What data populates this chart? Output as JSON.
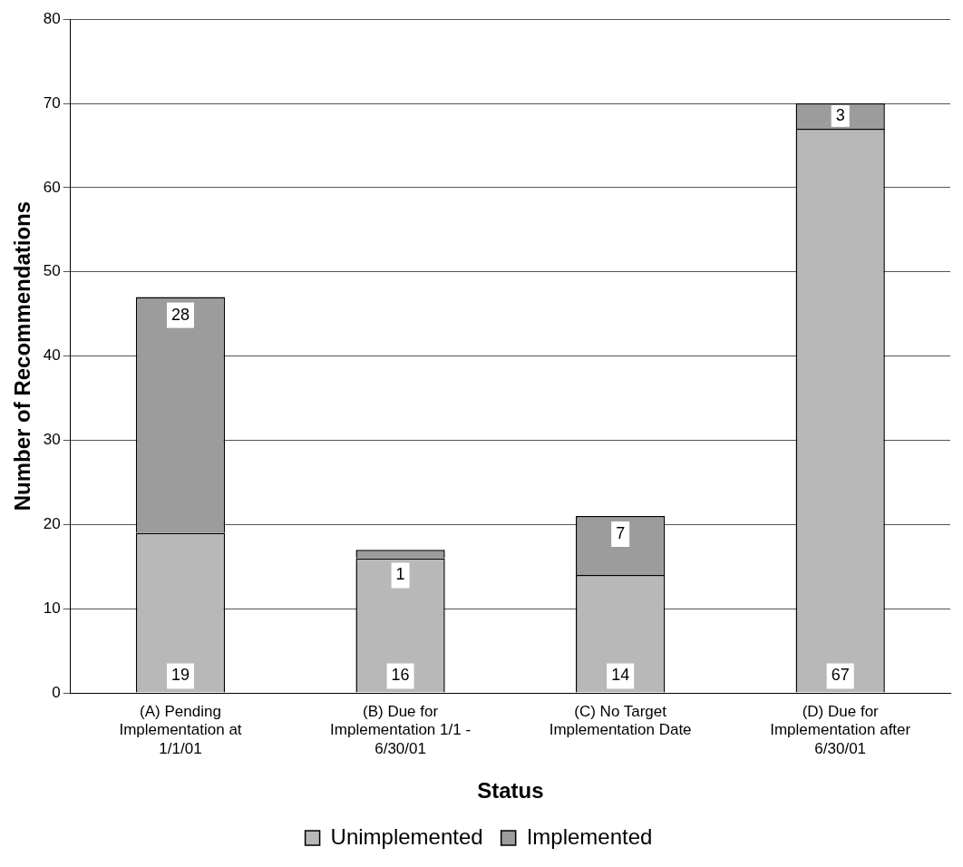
{
  "chart_data": {
    "type": "bar",
    "xlabel": "Status",
    "ylabel": "Number of Recommendations",
    "categories": [
      "(A) Pending Implementation at 1/1/01",
      "(B) Due for Implementation 1/1 - 6/30/01",
      "(C) No Target Implementation Date",
      "(D) Due for Implementation after 6/30/01"
    ],
    "series": [
      {
        "name": "Unimplemented",
        "color": "#b8b8b8",
        "values": [
          19,
          16,
          14,
          67
        ]
      },
      {
        "name": "Implemented",
        "color": "#9c9c9c",
        "values": [
          28,
          1,
          7,
          3
        ]
      }
    ],
    "stacked": true,
    "ylim": [
      0,
      80
    ],
    "yticks": [
      0,
      10,
      20,
      30,
      40,
      50,
      60,
      70,
      80
    ],
    "grid": "y",
    "legend": "bottom",
    "data_labels": true
  }
}
